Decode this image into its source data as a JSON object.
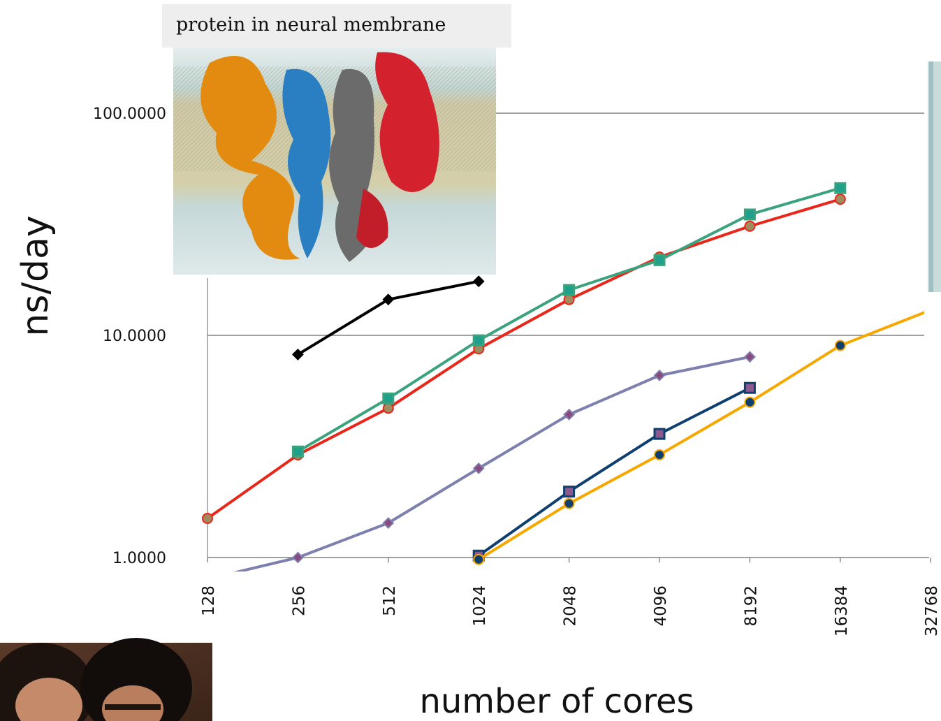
{
  "caption": "protein in neural membrane",
  "chart_data": {
    "type": "line",
    "title": "",
    "xlabel": "number of cores",
    "ylabel": "ns/day",
    "yscale": "log",
    "ylim": [
      1,
      100
    ],
    "yticks": [
      "1.0000",
      "10.0000",
      "100.0000"
    ],
    "categories": [
      "128",
      "256",
      "512",
      "1024",
      "2048",
      "4096",
      "8192",
      "16384",
      "32768"
    ],
    "grid": "horizontal",
    "series": [
      {
        "color": "#e8261a",
        "marker": "circle",
        "marker_fill": "#a08a5e",
        "values": [
          1.5,
          2.9,
          4.7,
          8.7,
          14.5,
          22.5,
          31,
          41,
          null
        ]
      },
      {
        "color": "#3aa37d",
        "marker": "square",
        "marker_fill": "#1ea08a",
        "values": [
          null,
          3.0,
          5.2,
          9.5,
          16,
          21.8,
          35,
          46,
          null
        ]
      },
      {
        "color": "#000000",
        "marker": "diamond",
        "marker_fill": "#000000",
        "values": [
          null,
          8.2,
          14.5,
          17.5,
          null,
          null,
          null,
          null,
          null
        ]
      },
      {
        "color": "#7d7fae",
        "marker": "diamond",
        "marker_fill": "#8a4a7e",
        "values": [
          0.8,
          1.0,
          1.43,
          2.52,
          4.4,
          6.6,
          8.0,
          null,
          null
        ]
      },
      {
        "color": "#0e3f6f",
        "marker": "square",
        "marker_fill": "#8a5a8e",
        "values": [
          null,
          null,
          null,
          1.02,
          1.98,
          3.6,
          5.8,
          null,
          null
        ]
      },
      {
        "color": "#f6a800",
        "marker": "circle",
        "marker_fill": "#0e3f6f",
        "values": [
          null,
          null,
          null,
          0.98,
          1.75,
          2.9,
          5.0,
          9.0,
          13.0
        ]
      }
    ]
  },
  "images": {
    "protein": "protein-membrane-render",
    "people": "people-photo",
    "right_edge": "partial-render"
  }
}
